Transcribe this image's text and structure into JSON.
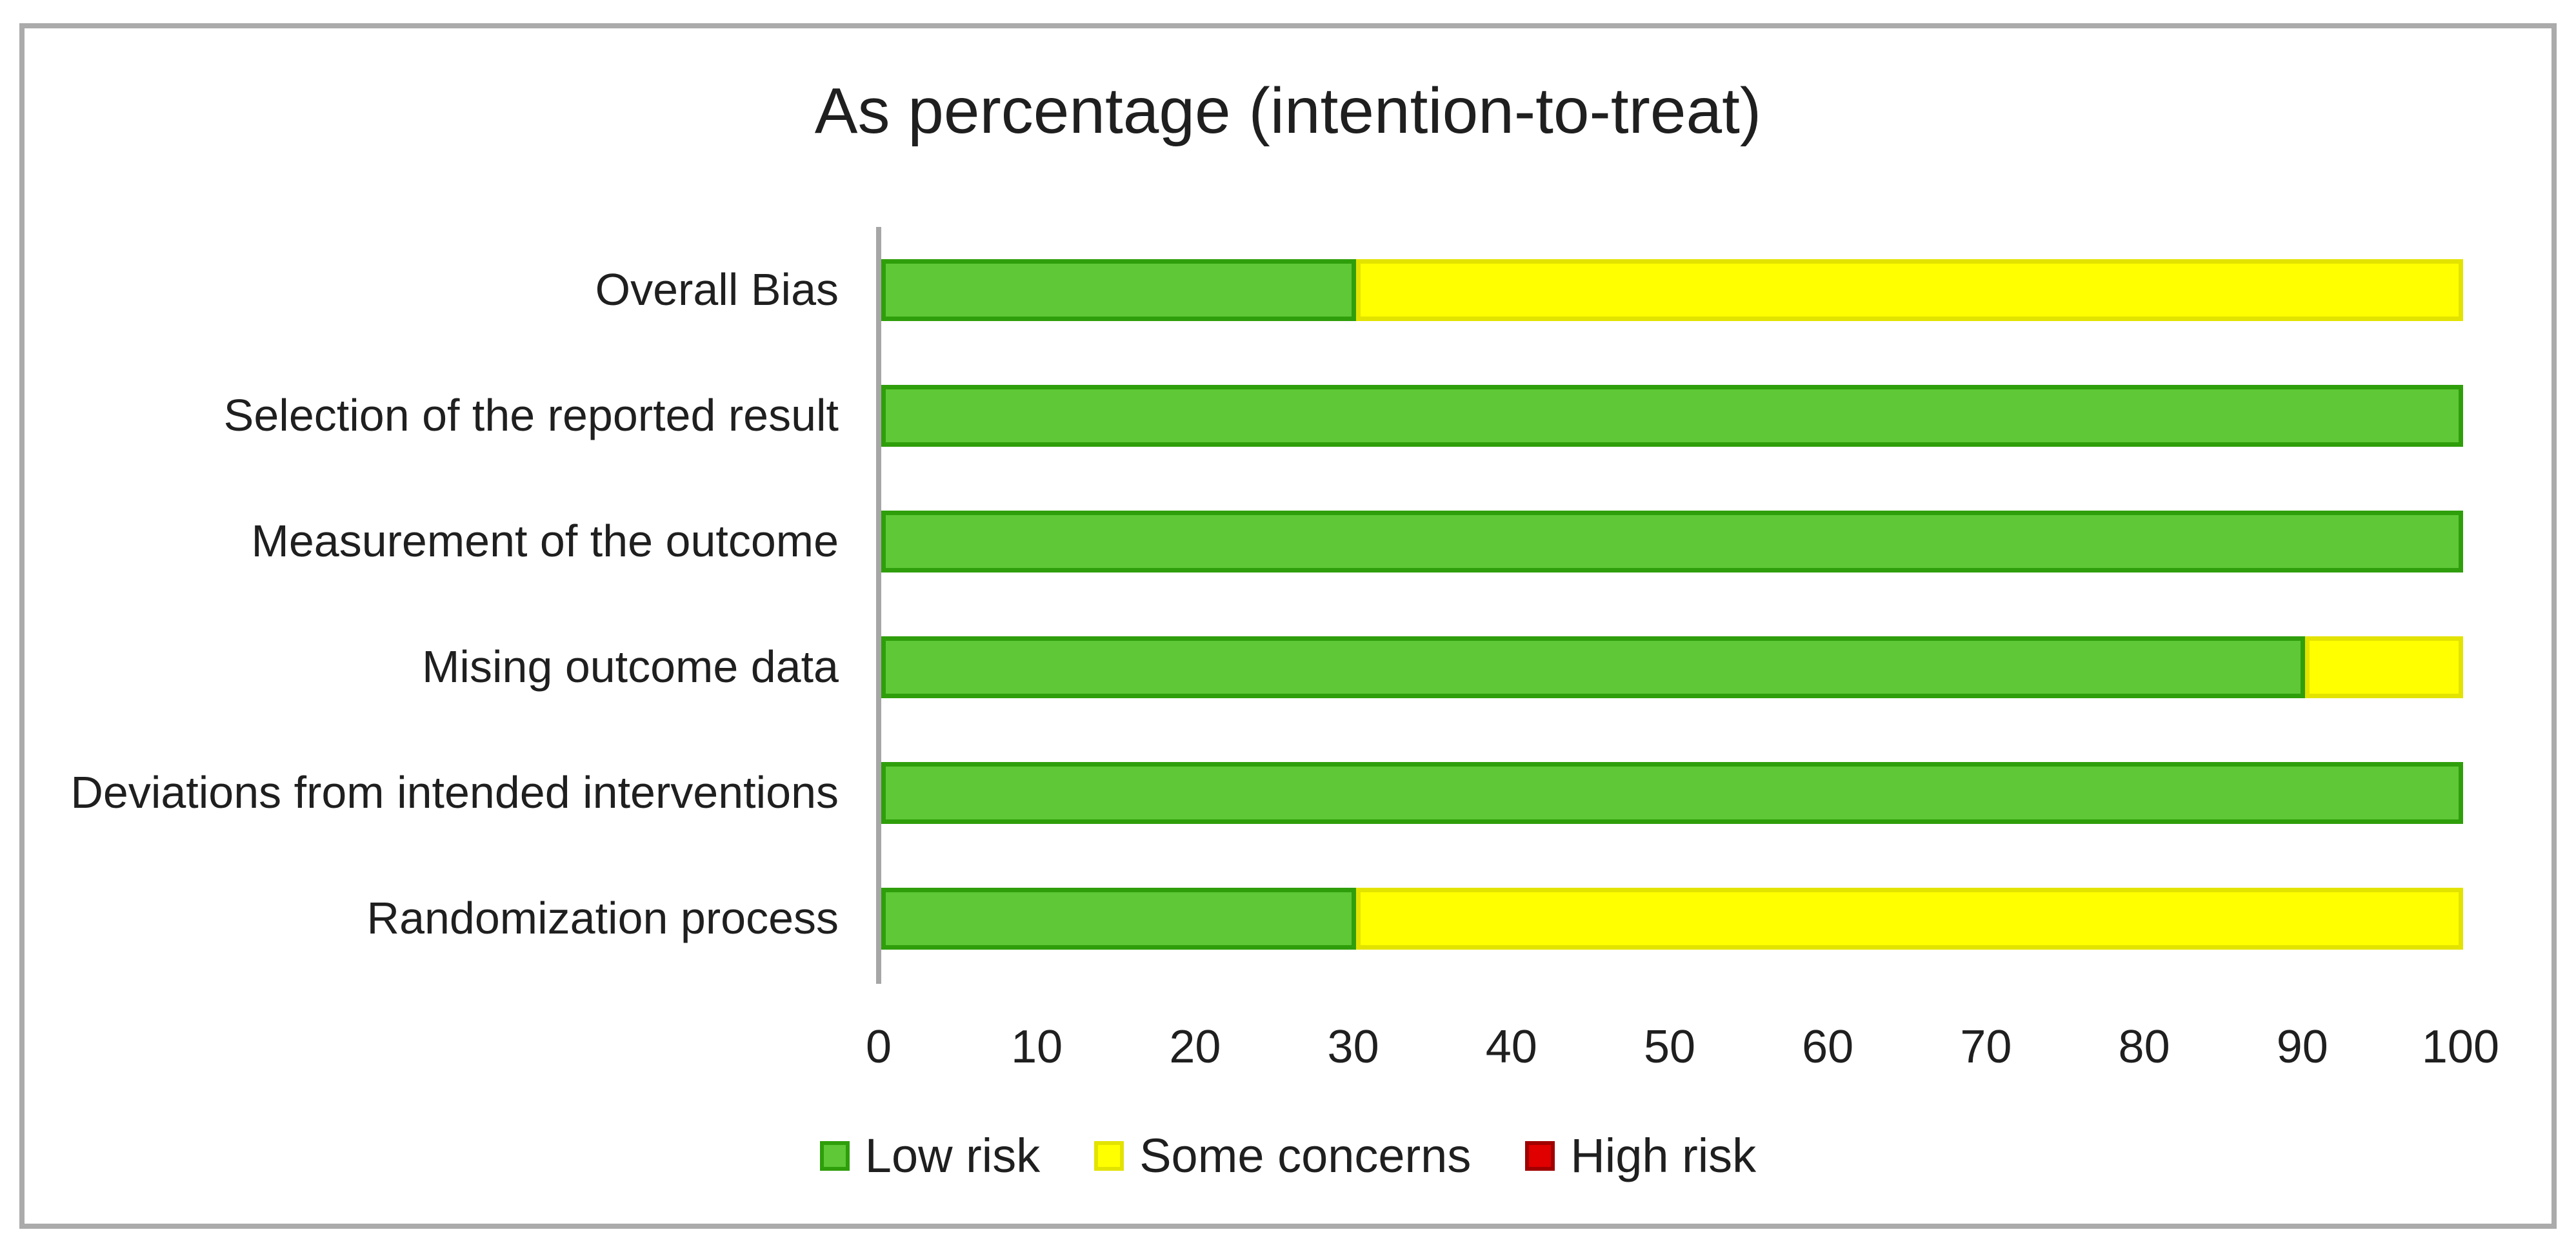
{
  "title": "As percentage (intention-to-treat)",
  "colors": {
    "low": "#5ec836",
    "low_border": "#2f9e0b",
    "some": "#ffff00",
    "some_border": "#ececec00",
    "some_border_visible": "#e3e300",
    "high": "#e00000",
    "high_border": "#a00000",
    "axis": "#a6a6a6",
    "frame_border": "#ababab",
    "text": "#1f1f1f"
  },
  "chart_data": {
    "type": "bar",
    "stacked": true,
    "orientation": "horizontal",
    "title": "As percentage (intention-to-treat)",
    "categories": [
      "Overall Bias",
      "Selection of the reported result",
      "Measurement of the outcome",
      "Mising outcome data",
      "Deviations from intended interventions",
      "Randomization process"
    ],
    "series": [
      {
        "name": "Low risk",
        "color_key": "low",
        "values": [
          30,
          100,
          100,
          90,
          100,
          30
        ]
      },
      {
        "name": "Some concerns",
        "color_key": "some",
        "values": [
          70,
          0,
          0,
          10,
          0,
          70
        ]
      },
      {
        "name": "High risk",
        "color_key": "high",
        "values": [
          0,
          0,
          0,
          0,
          0,
          0
        ]
      }
    ],
    "xlabel": "",
    "ylabel": "",
    "xlim": [
      0,
      100
    ],
    "x_ticks": [
      0,
      10,
      20,
      30,
      40,
      50,
      60,
      70,
      80,
      90,
      100
    ],
    "grid": false,
    "legend_position": "bottom",
    "legend": [
      "Low risk",
      "Some concerns",
      "High risk"
    ]
  }
}
